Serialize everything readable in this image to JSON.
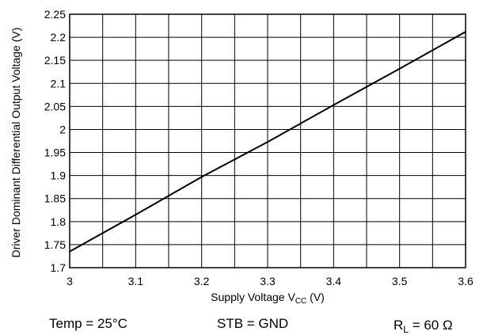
{
  "chart_data": {
    "type": "line",
    "xlabel": {
      "main": "Supply Voltage V",
      "sub": "CC",
      "tail": " (V)"
    },
    "ylabel": "Driver Dominant Differential Output Voltage (V)",
    "xlim": [
      3,
      3.6
    ],
    "ylim": [
      1.7,
      2.25
    ],
    "x_step": 0.05,
    "y_step": 0.05,
    "x_ticks": [
      "3",
      "3.1",
      "3.2",
      "3.3",
      "3.4",
      "3.5",
      "3.6"
    ],
    "x_tick_values": [
      3,
      3.1,
      3.2,
      3.3,
      3.4,
      3.5,
      3.6
    ],
    "y_ticks": [
      "1.7",
      "1.75",
      "1.8",
      "1.85",
      "1.9",
      "1.95",
      "2",
      "2.05",
      "2.1",
      "2.15",
      "2.2",
      "2.25"
    ],
    "y_tick_values": [
      1.7,
      1.75,
      1.8,
      1.85,
      1.9,
      1.95,
      2.0,
      2.05,
      2.1,
      2.15,
      2.2,
      2.25
    ],
    "grid": true,
    "series": [
      {
        "x": [
          3.0,
          3.1,
          3.2,
          3.3,
          3.4,
          3.5,
          3.6
        ],
        "y": [
          1.735,
          1.815,
          1.897,
          1.973,
          2.053,
          2.132,
          2.212
        ]
      }
    ],
    "color": "#000000"
  },
  "conditions": {
    "temp": "Temp = 25°C",
    "stb": "STB = GND",
    "rl_main": "R",
    "rl_sub": "L",
    "rl_tail": " = 60 Ω"
  }
}
